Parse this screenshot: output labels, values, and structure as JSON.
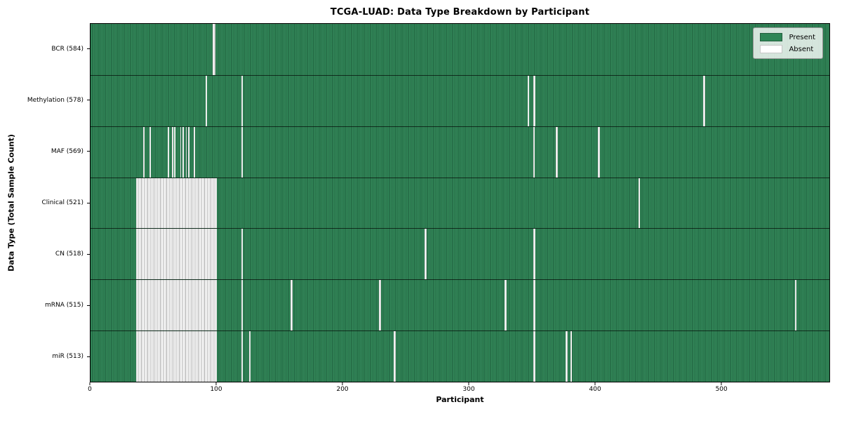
{
  "title": "TCGA-LUAD: Data Type Breakdown by Participant",
  "legend": {
    "present": "Present",
    "absent": "Absent"
  },
  "colors": {
    "present_fill": "#2e8656",
    "present_cell_edge": "#0d341f",
    "absent_fill": "#ffffff",
    "absent_cell_edge": "#a9a9a9",
    "legend_bg": "rgba(255,255,255,0.8)"
  },
  "chart_data": {
    "type": "heatmap",
    "title": "TCGA-LUAD: Data Type Breakdown by Participant",
    "xlabel": "Participant",
    "ylabel": "Data Type (Total Sample Count)",
    "legend_labels": [
      "Present",
      "Absent"
    ],
    "legend_position": "upper right",
    "x_ticks": [
      0,
      100,
      200,
      300,
      400,
      500
    ],
    "x_range": [
      0,
      586
    ],
    "total_participants": 586,
    "grid": false,
    "rows": [
      {
        "data_type": "BCR",
        "sample_count": 584,
        "label": "BCR (584)",
        "absent_ranges": [
          [
            97,
            99
          ]
        ]
      },
      {
        "data_type": "Methylation",
        "sample_count": 578,
        "label": "Methylation (578)",
        "absent_ranges": [
          [
            91,
            92.5
          ],
          [
            119.5,
            121
          ],
          [
            346.5,
            348
          ],
          [
            351,
            353
          ],
          [
            486,
            487.5
          ]
        ]
      },
      {
        "data_type": "MAF",
        "sample_count": 569,
        "label": "MAF (569)",
        "absent_ranges": [
          [
            42,
            43
          ],
          [
            47,
            48
          ],
          [
            61,
            62.5
          ],
          [
            64.5,
            65.5
          ],
          [
            66.5,
            67.5
          ],
          [
            71,
            72
          ],
          [
            73,
            74
          ],
          [
            75.5,
            76.5
          ],
          [
            77.5,
            78.5
          ],
          [
            82,
            83
          ],
          [
            119.5,
            121
          ],
          [
            351,
            352.5
          ],
          [
            369,
            370.5
          ],
          [
            402.5,
            404
          ]
        ]
      },
      {
        "data_type": "Clinical",
        "sample_count": 521,
        "label": "Clinical (521)",
        "absent_ranges": [
          [
            36,
            100
          ],
          [
            434.5,
            435.5
          ]
        ]
      },
      {
        "data_type": "CN",
        "sample_count": 518,
        "label": "CN (518)",
        "absent_ranges": [
          [
            36,
            100
          ],
          [
            119.5,
            120.5
          ],
          [
            265,
            266.5
          ],
          [
            351,
            353
          ]
        ]
      },
      {
        "data_type": "mRNA",
        "sample_count": 515,
        "label": "mRNA (515)",
        "absent_ranges": [
          [
            36,
            100
          ],
          [
            119.5,
            120.5
          ],
          [
            158.5,
            160
          ],
          [
            229,
            230.5
          ],
          [
            328.5,
            330
          ],
          [
            351,
            353
          ],
          [
            558.5,
            560
          ]
        ]
      },
      {
        "data_type": "miR",
        "sample_count": 513,
        "label": "miR (513)",
        "absent_ranges": [
          [
            36,
            100
          ],
          [
            119.5,
            120.5
          ],
          [
            125.5,
            127
          ],
          [
            240.5,
            242
          ],
          [
            351,
            353
          ],
          [
            377,
            378.5
          ],
          [
            380.5,
            382
          ]
        ]
      }
    ]
  }
}
